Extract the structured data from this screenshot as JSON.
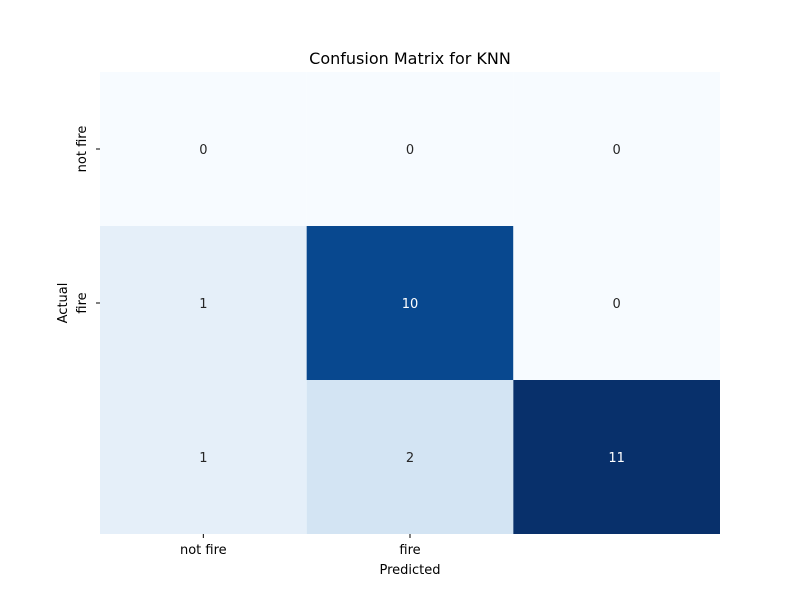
{
  "chart_data": {
    "type": "heatmap",
    "title": "Confusion Matrix for KNN",
    "xlabel": "Predicted",
    "ylabel": "Actual",
    "x_tick_labels": [
      "not fire",
      "fire",
      ""
    ],
    "y_tick_labels": [
      "not fire",
      "fire",
      ""
    ],
    "matrix": [
      [
        0,
        0,
        0
      ],
      [
        1,
        10,
        0
      ],
      [
        1,
        2,
        11
      ]
    ],
    "colormap": "Blues",
    "color_scale": [
      0,
      11
    ],
    "colorbar": false,
    "annotations": true
  }
}
